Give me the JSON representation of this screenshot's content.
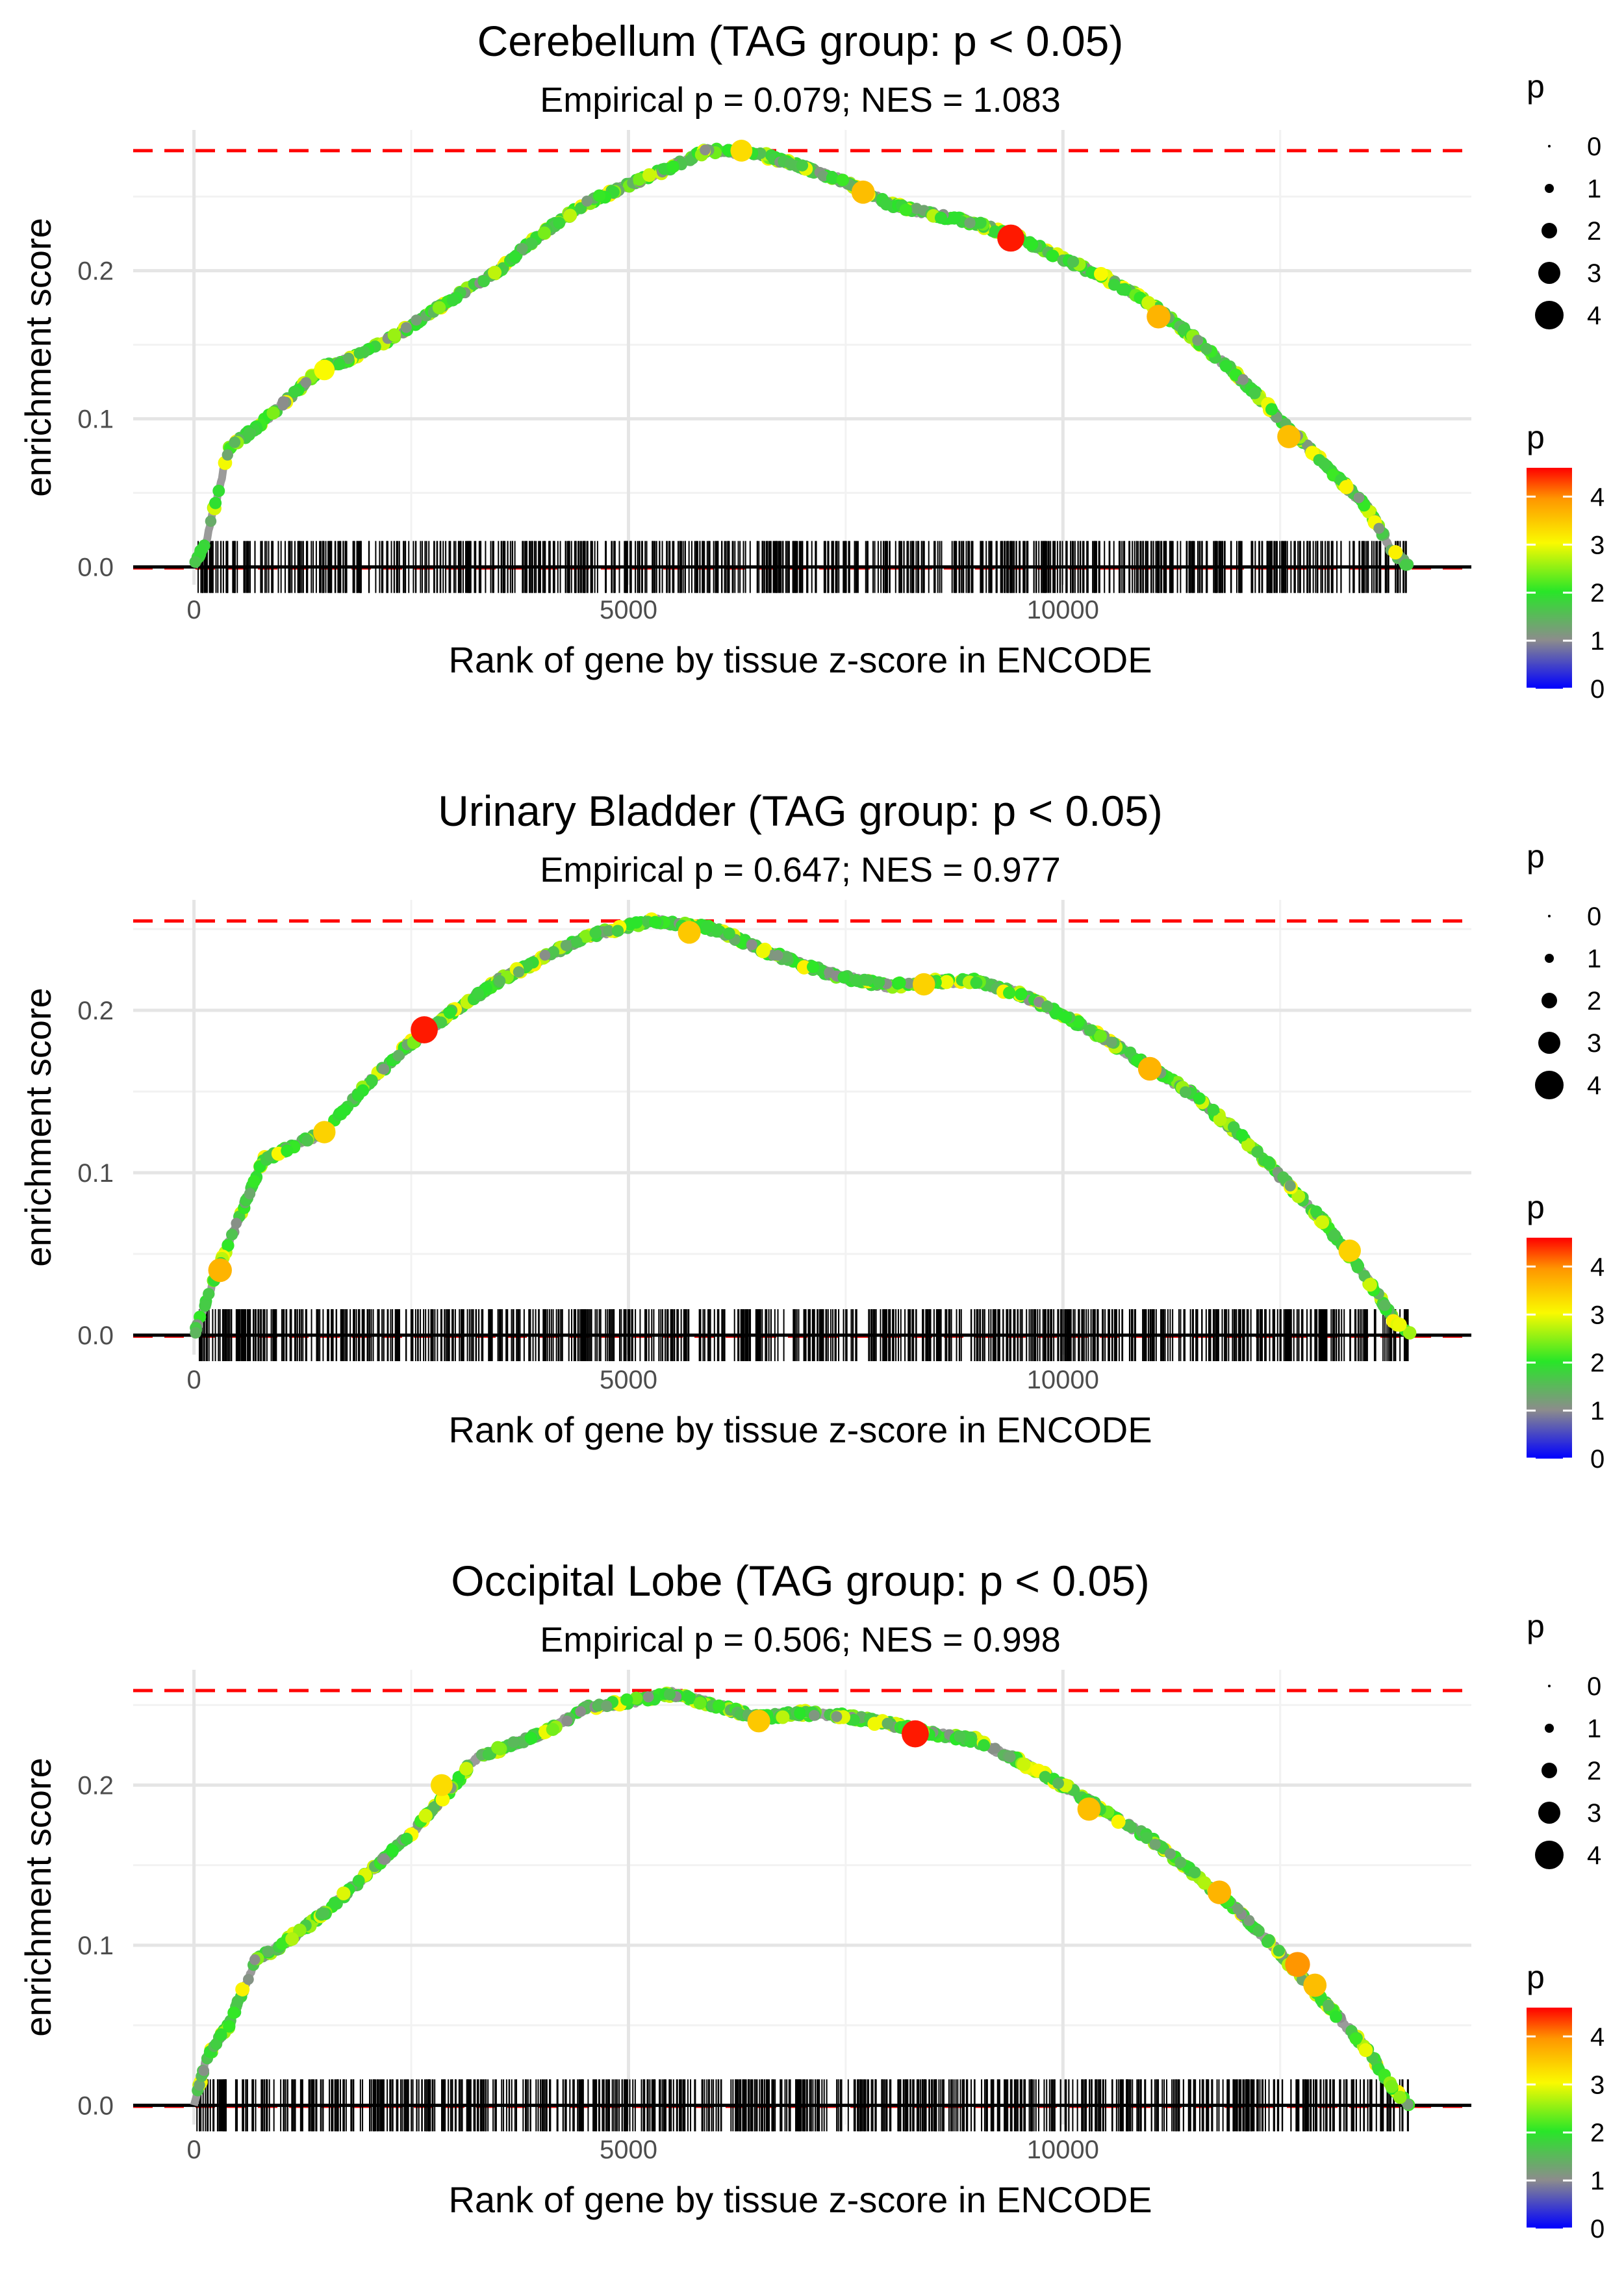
{
  "chart_data": [
    {
      "type": "line",
      "title": "Cerebellum (TAG group: p < 0.05)",
      "subtitle": "Empirical p = 0.079; NES = 1.083",
      "xlabel": "Rank of gene by tissue z-score in ENCODE",
      "ylabel": "enrichment score",
      "xlim": [
        -700,
        14700
      ],
      "ylim": [
        -0.012,
        0.295
      ],
      "xticks": [
        0,
        5000,
        10000
      ],
      "xtick_labels": [
        "0",
        "5000",
        "10000"
      ],
      "yticks": [
        0.0,
        0.1,
        0.2
      ],
      "ytick_labels": [
        "0.0",
        "0.1",
        "0.2"
      ],
      "max_es": 0.281,
      "n_genes": 14000,
      "curve": [
        [
          0,
          0
        ],
        [
          150,
          0.02
        ],
        [
          400,
          0.08
        ],
        [
          800,
          0.098
        ],
        [
          1200,
          0.12
        ],
        [
          1500,
          0.135
        ],
        [
          1800,
          0.14
        ],
        [
          2300,
          0.155
        ],
        [
          2800,
          0.175
        ],
        [
          3500,
          0.2
        ],
        [
          4000,
          0.225
        ],
        [
          4500,
          0.245
        ],
        [
          5000,
          0.258
        ],
        [
          5500,
          0.27
        ],
        [
          5900,
          0.281
        ],
        [
          6500,
          0.279
        ],
        [
          7000,
          0.27
        ],
        [
          7500,
          0.26
        ],
        [
          8000,
          0.245
        ],
        [
          8500,
          0.238
        ],
        [
          9000,
          0.232
        ],
        [
          9500,
          0.222
        ],
        [
          10000,
          0.208
        ],
        [
          10500,
          0.195
        ],
        [
          11000,
          0.178
        ],
        [
          11500,
          0.155
        ],
        [
          12000,
          0.13
        ],
        [
          12500,
          0.1
        ],
        [
          13000,
          0.07
        ],
        [
          13500,
          0.04
        ],
        [
          13800,
          0.01
        ],
        [
          14000,
          0
        ]
      ],
      "highlight_points": [
        {
          "x": 6300,
          "y": 0.281,
          "p": 3.3
        },
        {
          "x": 7700,
          "y": 0.253,
          "p": 3.6
        },
        {
          "x": 9400,
          "y": 0.222,
          "p": 4.5
        },
        {
          "x": 11100,
          "y": 0.169,
          "p": 3.7
        },
        {
          "x": 12600,
          "y": 0.088,
          "p": 3.6
        },
        {
          "x": 1500,
          "y": 0.133,
          "p": 3.0
        }
      ],
      "size_legend": {
        "title": "p",
        "labels": [
          "0",
          "1",
          "2",
          "3",
          "4"
        ]
      },
      "color_legend": {
        "title": "p",
        "labels": [
          "4",
          "3",
          "2",
          "1",
          "0"
        ]
      }
    },
    {
      "type": "line",
      "title": "Urinary Bladder (TAG group: p < 0.05)",
      "subtitle": "Empirical p = 0.647; NES = 0.977",
      "xlabel": "Rank of gene by tissue z-score in ENCODE",
      "ylabel": "enrichment score",
      "xlim": [
        -700,
        14700
      ],
      "ylim": [
        -0.012,
        0.268
      ],
      "xticks": [
        0,
        5000,
        10000
      ],
      "xtick_labels": [
        "0",
        "5000",
        "10000"
      ],
      "yticks": [
        0.0,
        0.1,
        0.2
      ],
      "ytick_labels": [
        "0.0",
        "0.1",
        "0.2"
      ],
      "max_es": 0.255,
      "n_genes": 14000,
      "curve": [
        [
          0,
          0
        ],
        [
          200,
          0.03
        ],
        [
          500,
          0.07
        ],
        [
          800,
          0.108
        ],
        [
          1200,
          0.118
        ],
        [
          1500,
          0.125
        ],
        [
          2000,
          0.155
        ],
        [
          2500,
          0.18
        ],
        [
          3000,
          0.2
        ],
        [
          3500,
          0.218
        ],
        [
          4000,
          0.232
        ],
        [
          4500,
          0.245
        ],
        [
          5000,
          0.252
        ],
        [
          5300,
          0.255
        ],
        [
          6000,
          0.25
        ],
        [
          6500,
          0.238
        ],
        [
          7000,
          0.228
        ],
        [
          7500,
          0.22
        ],
        [
          8000,
          0.215
        ],
        [
          8500,
          0.218
        ],
        [
          9000,
          0.218
        ],
        [
          9500,
          0.21
        ],
        [
          10000,
          0.197
        ],
        [
          10500,
          0.182
        ],
        [
          11000,
          0.165
        ],
        [
          11500,
          0.148
        ],
        [
          12000,
          0.125
        ],
        [
          12500,
          0.098
        ],
        [
          13000,
          0.07
        ],
        [
          13500,
          0.035
        ],
        [
          13800,
          0.01
        ],
        [
          14000,
          0
        ]
      ],
      "highlight_points": [
        {
          "x": 300,
          "y": 0.04,
          "p": 3.7
        },
        {
          "x": 2650,
          "y": 0.188,
          "p": 4.5
        },
        {
          "x": 1500,
          "y": 0.125,
          "p": 3.4
        },
        {
          "x": 5700,
          "y": 0.248,
          "p": 3.5
        },
        {
          "x": 8400,
          "y": 0.216,
          "p": 3.4
        },
        {
          "x": 11000,
          "y": 0.164,
          "p": 3.7
        },
        {
          "x": 13300,
          "y": 0.052,
          "p": 3.4
        }
      ],
      "size_legend": {
        "title": "p",
        "labels": [
          "0",
          "1",
          "2",
          "3",
          "4"
        ]
      },
      "color_legend": {
        "title": "p",
        "labels": [
          "4",
          "3",
          "2",
          "1",
          "0"
        ]
      }
    },
    {
      "type": "line",
      "title": "Occipital Lobe (TAG group: p < 0.05)",
      "subtitle": "Empirical p = 0.506; NES = 0.998",
      "xlabel": "Rank of gene by tissue z-score in ENCODE",
      "ylabel": "enrichment score",
      "xlim": [
        -700,
        14700
      ],
      "ylim": [
        -0.012,
        0.272
      ],
      "xticks": [
        0,
        5000,
        10000
      ],
      "xtick_labels": [
        "0",
        "5000",
        "10000"
      ],
      "yticks": [
        0.0,
        0.1,
        0.2
      ],
      "ytick_labels": [
        "0.0",
        "0.1",
        "0.2"
      ],
      "max_es": 0.259,
      "n_genes": 14000,
      "curve": [
        [
          0,
          0
        ],
        [
          150,
          0.03
        ],
        [
          400,
          0.05
        ],
        [
          700,
          0.09
        ],
        [
          1000,
          0.1
        ],
        [
          1500,
          0.12
        ],
        [
          2000,
          0.145
        ],
        [
          2500,
          0.17
        ],
        [
          3000,
          0.2
        ],
        [
          3200,
          0.215
        ],
        [
          3500,
          0.222
        ],
        [
          4000,
          0.232
        ],
        [
          4500,
          0.248
        ],
        [
          5000,
          0.252
        ],
        [
          5500,
          0.257
        ],
        [
          6000,
          0.25
        ],
        [
          6500,
          0.242
        ],
        [
          7000,
          0.245
        ],
        [
          7500,
          0.243
        ],
        [
          8000,
          0.238
        ],
        [
          8500,
          0.232
        ],
        [
          9000,
          0.228
        ],
        [
          9500,
          0.215
        ],
        [
          10000,
          0.2
        ],
        [
          10500,
          0.183
        ],
        [
          11000,
          0.167
        ],
        [
          11500,
          0.145
        ],
        [
          12000,
          0.122
        ],
        [
          12500,
          0.095
        ],
        [
          13000,
          0.065
        ],
        [
          13500,
          0.035
        ],
        [
          13800,
          0.01
        ],
        [
          14000,
          0
        ]
      ],
      "highlight_points": [
        {
          "x": 2850,
          "y": 0.2,
          "p": 3.3
        },
        {
          "x": 6500,
          "y": 0.24,
          "p": 3.5
        },
        {
          "x": 8300,
          "y": 0.232,
          "p": 4.5
        },
        {
          "x": 10300,
          "y": 0.185,
          "p": 3.6
        },
        {
          "x": 11800,
          "y": 0.133,
          "p": 3.7
        },
        {
          "x": 12700,
          "y": 0.088,
          "p": 4.0
        },
        {
          "x": 12900,
          "y": 0.075,
          "p": 3.6
        }
      ],
      "size_legend": {
        "title": "p",
        "labels": [
          "0",
          "1",
          "2",
          "3",
          "4"
        ]
      },
      "color_legend": {
        "title": "p",
        "labels": [
          "4",
          "3",
          "2",
          "1",
          "0"
        ]
      }
    }
  ]
}
